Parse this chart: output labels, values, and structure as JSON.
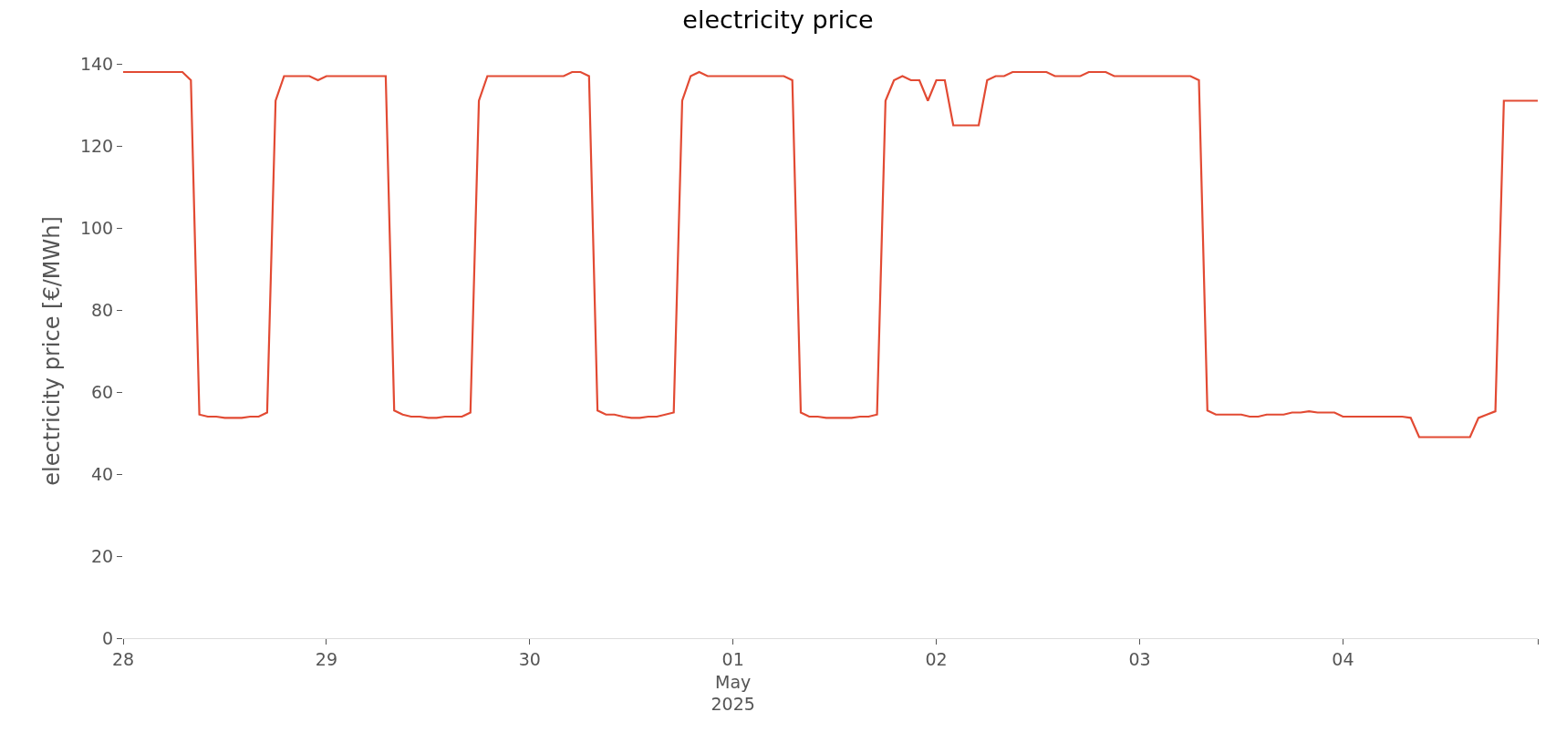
{
  "chart_data": {
    "type": "line",
    "title": "electricity price",
    "ylabel": "electricity price [€/MWh]",
    "x": [
      "2025-04-28T00:00",
      "2025-04-28T07:00",
      "2025-04-28T08:00",
      "2025-04-28T09:00",
      "2025-04-28T10:00",
      "2025-04-28T11:00",
      "2025-04-28T12:00",
      "2025-04-28T14:00",
      "2025-04-28T15:00",
      "2025-04-28T16:00",
      "2025-04-28T17:00",
      "2025-04-28T18:00",
      "2025-04-28T19:00",
      "2025-04-28T22:00",
      "2025-04-28T23:00",
      "2025-04-29T00:00",
      "2025-04-29T07:00",
      "2025-04-29T08:00",
      "2025-04-29T09:00",
      "2025-04-29T10:00",
      "2025-04-29T11:00",
      "2025-04-29T12:00",
      "2025-04-29T13:00",
      "2025-04-29T14:00",
      "2025-04-29T16:00",
      "2025-04-29T17:00",
      "2025-04-29T18:00",
      "2025-04-29T19:00",
      "2025-04-30T04:00",
      "2025-04-30T05:00",
      "2025-04-30T06:00",
      "2025-04-30T07:00",
      "2025-04-30T08:00",
      "2025-04-30T09:00",
      "2025-04-30T10:00",
      "2025-04-30T11:00",
      "2025-04-30T12:00",
      "2025-04-30T13:00",
      "2025-04-30T14:00",
      "2025-04-30T15:00",
      "2025-04-30T16:00",
      "2025-04-30T17:00",
      "2025-04-30T18:00",
      "2025-04-30T19:00",
      "2025-04-30T20:00",
      "2025-04-30T21:00",
      "2025-05-01T06:00",
      "2025-05-01T07:00",
      "2025-05-01T08:00",
      "2025-05-01T09:00",
      "2025-05-01T10:00",
      "2025-05-01T11:00",
      "2025-05-01T14:00",
      "2025-05-01T15:00",
      "2025-05-01T16:00",
      "2025-05-01T17:00",
      "2025-05-01T18:00",
      "2025-05-01T19:00",
      "2025-05-01T20:00",
      "2025-05-01T21:00",
      "2025-05-01T22:00",
      "2025-05-01T23:00",
      "2025-05-02T00:00",
      "2025-05-02T01:00",
      "2025-05-02T02:00",
      "2025-05-02T05:00",
      "2025-05-02T06:00",
      "2025-05-02T07:00",
      "2025-05-02T08:00",
      "2025-05-02T09:00",
      "2025-05-02T13:00",
      "2025-05-02T14:00",
      "2025-05-02T17:00",
      "2025-05-02T18:00",
      "2025-05-02T20:00",
      "2025-05-02T21:00",
      "2025-05-03T06:00",
      "2025-05-03T07:00",
      "2025-05-03T08:00",
      "2025-05-03T09:00",
      "2025-05-03T12:00",
      "2025-05-03T13:00",
      "2025-05-03T14:00",
      "2025-05-03T15:00",
      "2025-05-03T17:00",
      "2025-05-03T18:00",
      "2025-05-03T19:00",
      "2025-05-03T20:00",
      "2025-05-03T21:00",
      "2025-05-03T23:00",
      "2025-05-04T00:00",
      "2025-05-04T07:00",
      "2025-05-04T08:00",
      "2025-05-04T09:00",
      "2025-05-04T15:00",
      "2025-05-04T16:00",
      "2025-05-04T17:00",
      "2025-05-04T18:00",
      "2025-05-04T19:00",
      "2025-05-04T23:00"
    ],
    "series": [
      {
        "color": "#e24a33",
        "values": [
          138,
          138,
          136,
          54.5,
          54,
          54,
          53.7,
          53.7,
          54,
          54,
          55,
          131,
          137,
          137,
          136,
          137,
          137,
          55.5,
          54.5,
          54,
          54,
          53.7,
          53.7,
          54,
          54,
          55,
          131,
          137,
          137,
          138,
          138,
          137,
          55.5,
          54.5,
          54.5,
          54,
          53.7,
          53.7,
          54,
          54,
          54.5,
          55,
          131,
          137,
          138,
          137,
          137,
          136,
          55,
          54,
          54,
          53.7,
          53.7,
          54,
          54,
          54.5,
          131,
          136,
          137,
          136,
          136,
          131,
          136,
          136,
          125,
          125,
          136,
          137,
          137,
          138,
          138,
          137,
          137,
          138,
          138,
          137,
          137,
          136,
          55.5,
          54.5,
          54.5,
          54,
          54,
          54.5,
          54.5,
          55,
          55,
          55.3,
          55,
          55,
          54,
          54,
          53.7,
          49,
          49,
          53.7,
          54.5,
          55.3,
          131,
          131
        ]
      }
    ],
    "xlim": [
      "2025-04-28T00:00",
      "2025-05-04T23:00"
    ],
    "xticks": [
      {
        "value": "2025-04-28",
        "label": "28"
      },
      {
        "value": "2025-04-29",
        "label": "29"
      },
      {
        "value": "2025-04-30",
        "label": "30"
      },
      {
        "value": "2025-05-01",
        "label": "01\nMay\n2025"
      },
      {
        "value": "2025-05-02",
        "label": "02"
      },
      {
        "value": "2025-05-03",
        "label": "03"
      },
      {
        "value": "2025-05-04",
        "label": "04"
      },
      {
        "value": "2025-05-04T23:00",
        "label": null
      }
    ],
    "ylim": [
      0,
      140
    ],
    "yticks": [
      0,
      20,
      40,
      60,
      80,
      100,
      120,
      140
    ],
    "line_style": "solid"
  }
}
